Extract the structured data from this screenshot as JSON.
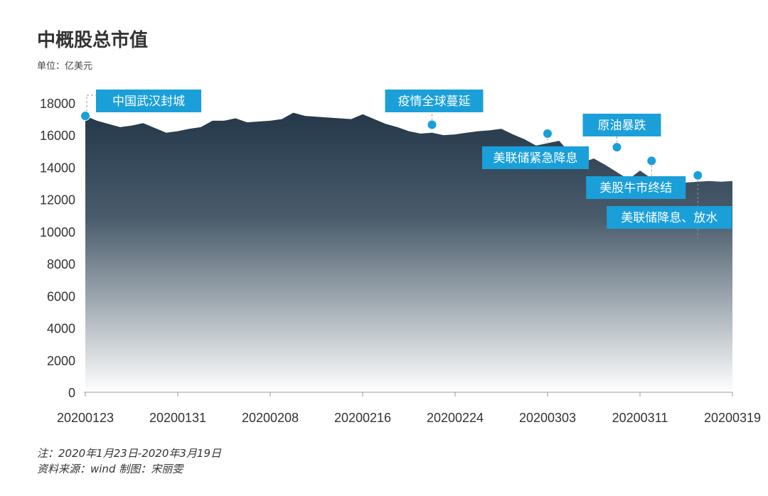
{
  "title": "中概股总市值",
  "unit_label": "单位：亿美元",
  "note": "注：2020年1月23日-2020年3月19日",
  "source": "资料来源：wind     制图：宋丽雯",
  "colors": {
    "area_top": "#24384a",
    "area_mid": "#4a5c6c",
    "area_bottom": "#ffffff",
    "annotation": "#1a9fd9",
    "axis": "#999999"
  },
  "chart_data": {
    "type": "area",
    "title": "中概股总市值",
    "ylabel": "单位：亿美元",
    "ylim": [
      0,
      18000
    ],
    "yticks": [
      0,
      2000,
      4000,
      6000,
      8000,
      10000,
      12000,
      14000,
      16000,
      18000
    ],
    "xlim": [
      0,
      56
    ],
    "xticks": [
      {
        "x": 0,
        "label": "20200123"
      },
      {
        "x": 8,
        "label": "20200131"
      },
      {
        "x": 16,
        "label": "20200208"
      },
      {
        "x": 24,
        "label": "20200216"
      },
      {
        "x": 32,
        "label": "20200224"
      },
      {
        "x": 40,
        "label": "20200303"
      },
      {
        "x": 48,
        "label": "20200311"
      },
      {
        "x": 56,
        "label": "20200319"
      }
    ],
    "series": [
      {
        "points": [
          [
            0,
            17200
          ],
          [
            1,
            16900
          ],
          [
            2,
            16700
          ],
          [
            3,
            16500
          ],
          [
            4,
            16600
          ],
          [
            5,
            16750
          ],
          [
            6,
            16450
          ],
          [
            7,
            16150
          ],
          [
            8,
            16250
          ],
          [
            9,
            16400
          ],
          [
            10,
            16500
          ],
          [
            11,
            16900
          ],
          [
            12,
            16900
          ],
          [
            13,
            17050
          ],
          [
            14,
            16800
          ],
          [
            15,
            16850
          ],
          [
            16,
            16900
          ],
          [
            17,
            17000
          ],
          [
            18,
            17400
          ],
          [
            19,
            17200
          ],
          [
            20,
            17150
          ],
          [
            21,
            17100
          ],
          [
            22,
            17050
          ],
          [
            23,
            17000
          ],
          [
            24,
            17300
          ],
          [
            25,
            17000
          ],
          [
            26,
            16700
          ],
          [
            27,
            16500
          ],
          [
            28,
            16250
          ],
          [
            29,
            16100
          ],
          [
            30,
            16150
          ],
          [
            31,
            16000
          ],
          [
            32,
            16050
          ],
          [
            33,
            16150
          ],
          [
            34,
            16250
          ],
          [
            35,
            16300
          ],
          [
            36,
            16400
          ],
          [
            37,
            16050
          ],
          [
            38,
            15750
          ],
          [
            39,
            15350
          ],
          [
            40,
            15500
          ],
          [
            41,
            15650
          ],
          [
            42,
            14850
          ],
          [
            43,
            14300
          ],
          [
            44,
            14550
          ],
          [
            45,
            14150
          ],
          [
            46,
            13700
          ],
          [
            47,
            13250
          ],
          [
            48,
            13800
          ],
          [
            49,
            13300
          ],
          [
            50,
            13050
          ],
          [
            51,
            13100
          ],
          [
            52,
            13050
          ],
          [
            53,
            13100
          ],
          [
            54,
            13150
          ],
          [
            55,
            13100
          ],
          [
            56,
            13150
          ]
        ]
      }
    ],
    "annotations": [
      {
        "text": "中国武汉封城",
        "x": 0,
        "y": 17200
      },
      {
        "text": "疫情全球蔓延",
        "x": 30,
        "y": 16650
      },
      {
        "text": "美联储紧急降息",
        "x": 40,
        "y": 16100
      },
      {
        "text": "原油暴跌",
        "x": 46,
        "y": 15250
      },
      {
        "text": "美股牛市终结",
        "x": 49,
        "y": 14400
      },
      {
        "text": "美联储降息、放水",
        "x": 53,
        "y": 13500
      }
    ]
  }
}
